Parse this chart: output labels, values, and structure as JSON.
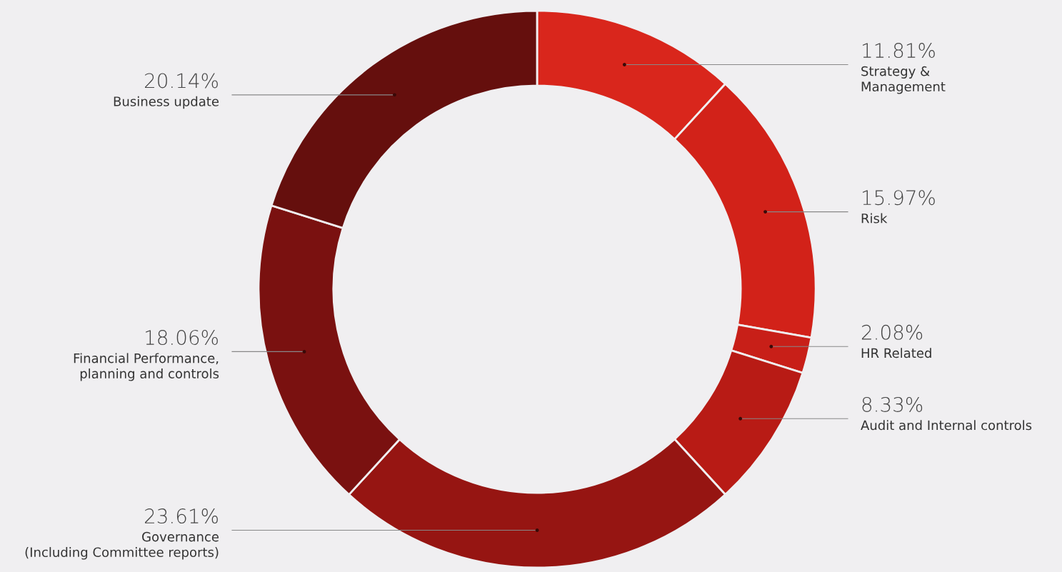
{
  "chart_data": {
    "type": "donut",
    "categories": [
      "Strategy &\nManagement",
      "Risk",
      "HR Related",
      "Audit and Internal controls",
      "Governance\n(Including Committee reports)",
      "Financial Performance,\nplanning and controls",
      "Business update"
    ],
    "values": [
      11.81,
      15.97,
      2.08,
      8.33,
      23.61,
      18.06,
      20.14
    ],
    "value_labels": [
      "11.81%",
      "15.97%",
      "2.08%",
      "8.33%",
      "23.61%",
      "18.06%",
      "20.14%"
    ],
    "colors": [
      "#d9261c",
      "#d22219",
      "#c81f18",
      "#b81b15",
      "#961512",
      "#7a1110",
      "#650f0d"
    ]
  }
}
